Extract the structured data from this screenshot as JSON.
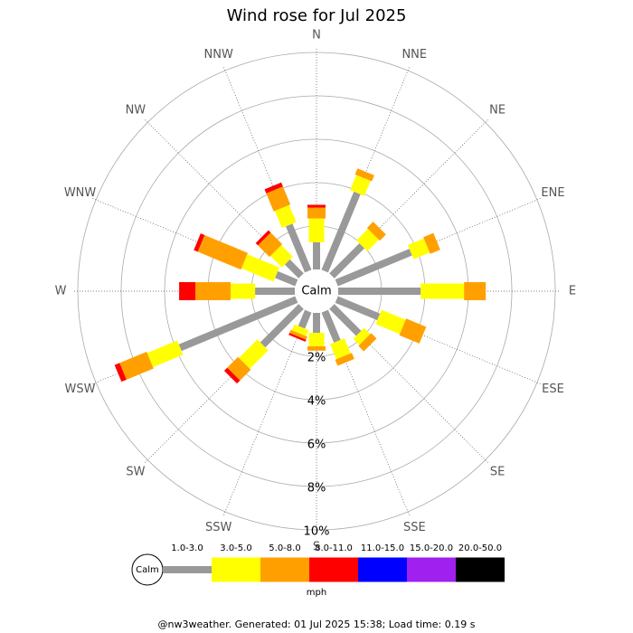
{
  "chart_data": {
    "type": "windrose",
    "title": "Wind rose for Jul 2025",
    "categories": [
      "N",
      "NNE",
      "NE",
      "ENE",
      "E",
      "ESE",
      "SE",
      "SSE",
      "S",
      "SSW",
      "SW",
      "WSW",
      "W",
      "WNW",
      "NW",
      "NNW"
    ],
    "calm_label": "Calm",
    "unit": "mph",
    "rlim": [
      0,
      10
    ],
    "rticks": [
      {
        "value": 2,
        "label": "2%"
      },
      {
        "value": 4,
        "label": "4%"
      },
      {
        "value": 6,
        "label": "6%"
      },
      {
        "value": 8,
        "label": "8%"
      },
      {
        "value": 10,
        "label": "10%"
      }
    ],
    "grid": true,
    "series": [
      {
        "name": "1.0-3.0",
        "color": "#999999",
        "values": [
          1.25,
          3.9,
          1.96,
          3.7,
          3.8,
          2.1,
          1.75,
          1.5,
          0.92,
          0.8,
          2.5,
          5.8,
          1.83,
          1.0,
          0.9,
          2.3
        ]
      },
      {
        "name": "3.0-5.0",
        "color": "#ffff00",
        "values": [
          1.1,
          0.75,
          0.75,
          0.8,
          2.0,
          1.2,
          0.4,
          0.75,
          0.62,
          0.3,
          1.2,
          1.5,
          1.13,
          1.6,
          0.75,
          0.85
        ]
      },
      {
        "name": "5.0-8.0",
        "color": "#ffa000",
        "values": [
          0.5,
          0.3,
          0.4,
          0.5,
          1.0,
          1.0,
          0.35,
          0.3,
          0.2,
          0.15,
          0.7,
          1.35,
          1.62,
          2.15,
          0.75,
          0.9
        ]
      },
      {
        "name": "8.0-11.0",
        "color": "#ff0000",
        "values": [
          0.13,
          0,
          0,
          0,
          0,
          0,
          0,
          0,
          0,
          0.1,
          0.2,
          0.25,
          0.75,
          0.2,
          0.15,
          0.2
        ]
      },
      {
        "name": "11.0-15.0",
        "color": "#0000ff",
        "values": [
          0,
          0,
          0,
          0,
          0,
          0,
          0,
          0,
          0,
          0,
          0,
          0,
          0,
          0,
          0,
          0
        ]
      },
      {
        "name": "15.0-20.0",
        "color": "#a020f0",
        "values": [
          0,
          0,
          0,
          0,
          0,
          0,
          0,
          0,
          0,
          0,
          0,
          0,
          0,
          0,
          0,
          0
        ]
      },
      {
        "name": "20.0-50.0",
        "color": "#000000",
        "values": [
          0,
          0,
          0,
          0,
          0,
          0,
          0,
          0,
          0,
          0,
          0,
          0,
          0,
          0,
          0,
          0
        ]
      }
    ],
    "footer": "@nw3weather. Generated: 01 Jul 2025 15:38; Load time: 0.19 s"
  }
}
